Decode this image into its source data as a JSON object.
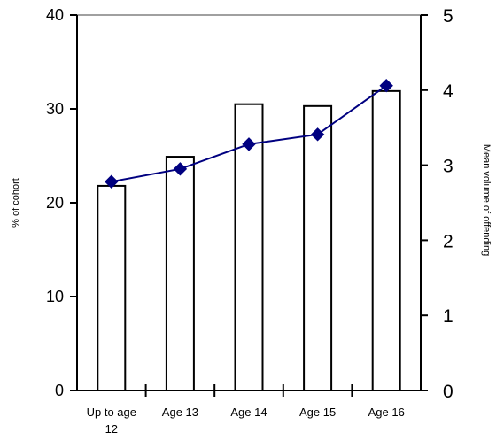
{
  "chart_data": {
    "type": "bar",
    "categories": [
      [
        "Up to age",
        "12"
      ],
      [
        "Age 13"
      ],
      [
        "Age 14"
      ],
      [
        "Age 15"
      ],
      [
        "Age 16"
      ]
    ],
    "series": [
      {
        "values": [
          21.8,
          24.9,
          30.5,
          30.3,
          31.9
        ],
        "axis": "left",
        "kind": "bar"
      },
      {
        "values": [
          2.78,
          2.95,
          3.28,
          3.41,
          4.06
        ],
        "axis": "right",
        "kind": "line",
        "marker": "diamond"
      }
    ],
    "ylabel": "% of cohort",
    "y2label": "Mean volume of offending",
    "ylim": [
      0,
      40
    ],
    "y2lim": [
      0,
      5
    ],
    "yticks": [
      0,
      10,
      20,
      30,
      40
    ],
    "y2ticks": [
      0,
      1,
      2,
      3,
      4,
      5
    ],
    "grid": false,
    "legend": "none",
    "colors": {
      "bar_fill": "#ffffff",
      "bar_stroke": "#000000",
      "line": "#000080",
      "marker": "#000080",
      "top_border": "#808080",
      "axis": "#000000"
    }
  }
}
